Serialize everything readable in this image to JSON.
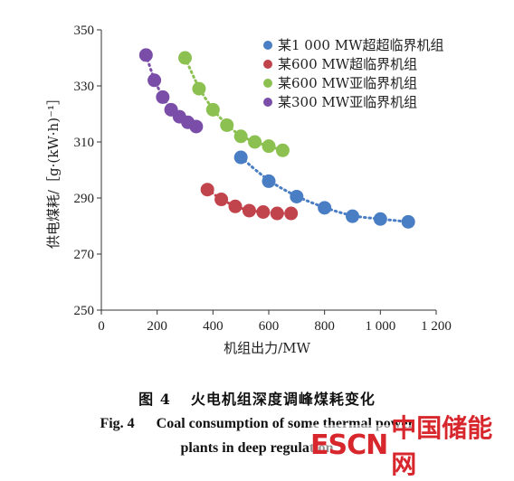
{
  "chart_data": {
    "type": "scatter",
    "xlabel": "机组出力/MW",
    "ylabel": "供电煤耗/［g·(kW·h)⁻¹］",
    "xlim": [
      0,
      1200
    ],
    "ylim": [
      250,
      350
    ],
    "x_ticks": [
      "0",
      "200",
      "400",
      "600",
      "800",
      "1 000",
      "1 200"
    ],
    "y_ticks": [
      "250",
      "270",
      "290",
      "310",
      "330",
      "350"
    ],
    "x_tick_values": [
      0,
      200,
      400,
      600,
      800,
      1000,
      1200
    ],
    "y_tick_values": [
      250,
      270,
      290,
      310,
      330,
      350
    ],
    "grid": false,
    "legend_position": "top-right",
    "trendline": "dotted",
    "series": [
      {
        "name": "某1 000 MW超超临界机组",
        "color": "#4a7ec4",
        "x": [
          500,
          600,
          700,
          800,
          900,
          1000,
          1100
        ],
        "y": [
          304.5,
          296,
          290.5,
          286.5,
          283.5,
          282.5,
          281.5
        ]
      },
      {
        "name": "某600 MW超临界机组",
        "color": "#c1434b",
        "x": [
          380,
          430,
          480,
          530,
          580,
          630,
          680
        ],
        "y": [
          293,
          289.5,
          287,
          285.5,
          285,
          284.5,
          284.5
        ]
      },
      {
        "name": "某600 MW亚临界机组",
        "color": "#8cc152",
        "x": [
          300,
          350,
          400,
          450,
          500,
          550,
          600,
          650
        ],
        "y": [
          340,
          329,
          321.5,
          316,
          312,
          310,
          308.5,
          307
        ]
      },
      {
        "name": "某300 MW亚临界机组",
        "color": "#7a4ea8",
        "x": [
          160,
          190,
          220,
          250,
          280,
          310,
          340
        ],
        "y": [
          341,
          332,
          326,
          321.5,
          319,
          317,
          315.5
        ]
      }
    ]
  },
  "caption": {
    "cn_number": "图 4",
    "cn_text": "火电机组深度调峰煤耗变化",
    "en_number": "Fig. 4",
    "en_line1": "Coal consumption of some thermal power",
    "en_line2": "plants in deep regulation"
  },
  "watermark": {
    "latin": "ESCN",
    "cn": "中国储能网"
  }
}
